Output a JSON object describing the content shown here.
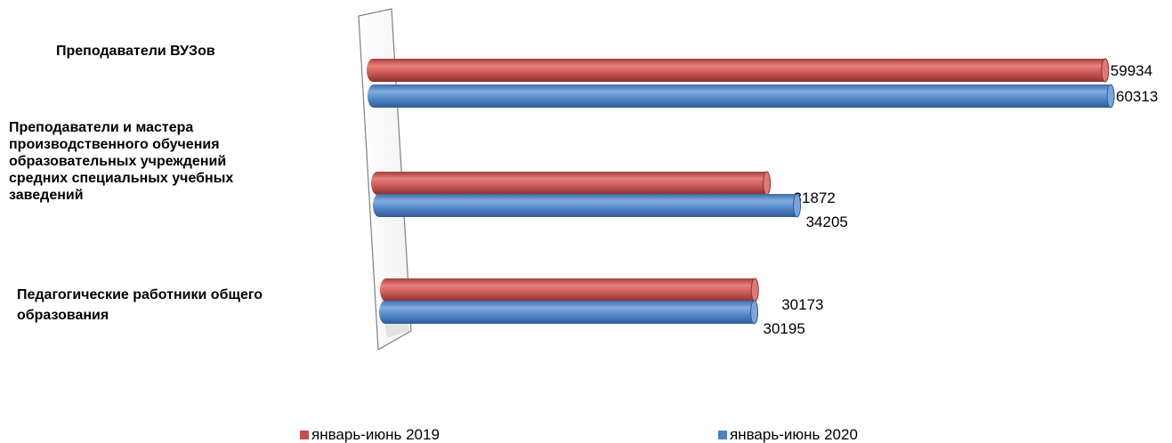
{
  "chart_data": {
    "type": "bar",
    "orientation": "horizontal",
    "style": "3d-cylinder",
    "categories": [
      "Преподаватели ВУЗов",
      "Преподаватели и мастера производственного обучения образовательных учреждений средних специальных учебных заведений",
      "Педагогические работники общего образования"
    ],
    "category_lines": [
      [
        "Преподаватели ВУЗов"
      ],
      [
        "Преподаватели и мастера",
        "производственного обучения",
        "образовательных учреждений",
        "средних специальных учебных",
        "заведений"
      ],
      [
        "Педагогические работники общего",
        "образования"
      ]
    ],
    "series": [
      {
        "name": "январь-июнь 2019",
        "color": "#c0504d",
        "values": [
          59934,
          31872,
          30173
        ]
      },
      {
        "name": "январь-июнь 2020",
        "color": "#4f81bd",
        "values": [
          60313,
          34205,
          30195
        ]
      }
    ],
    "xlim": [
      0,
      60313
    ],
    "grid": false,
    "legend": "bottom"
  }
}
